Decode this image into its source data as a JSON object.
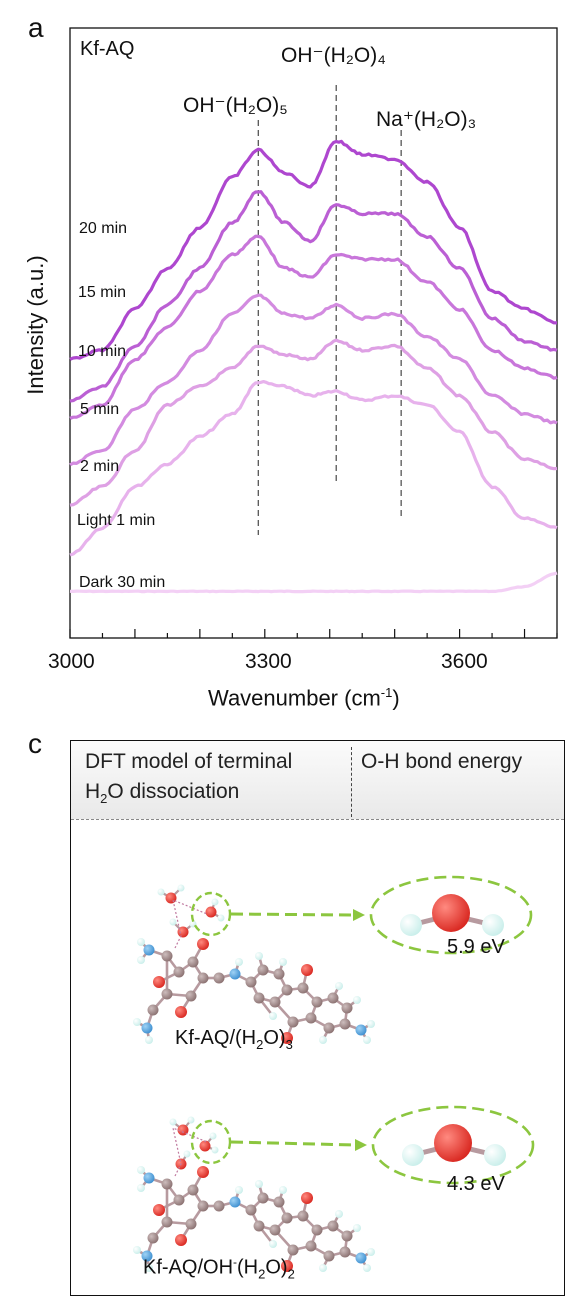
{
  "panel_a": {
    "letter": "a",
    "sample": "Kf-AQ",
    "chart_data": {
      "type": "line",
      "title": "",
      "xlabel": "Wavenumber (cm-1)",
      "ylabel": "Intensity (a.u.)",
      "xlim": [
        3000,
        3750
      ],
      "x_ticks": [
        3000,
        3300,
        3600
      ],
      "y_ticks_shown": false,
      "grid": false,
      "legend": "inline labels left of each trace",
      "x": [
        3000,
        3050,
        3100,
        3150,
        3200,
        3250,
        3290,
        3330,
        3370,
        3410,
        3450,
        3500,
        3550,
        3600,
        3650,
        3700,
        3750
      ],
      "series": [
        {
          "name": "Dark 30 min",
          "color": "#f3d0f5",
          "values": [
            0.3,
            0.3,
            0.3,
            0.3,
            0.3,
            0.3,
            0.3,
            0.3,
            0.3,
            0.3,
            0.3,
            0.3,
            0.3,
            0.3,
            0.3,
            0.4,
            0.7
          ]
        },
        {
          "name": "Light 1 min",
          "color": "#e7b2ec",
          "values": [
            1.1,
            1.7,
            2.6,
            3.1,
            3.7,
            4.2,
            4.9,
            4.8,
            4.6,
            4.7,
            4.5,
            4.6,
            4.4,
            3.8,
            2.6,
            1.9,
            1.7
          ]
        },
        {
          "name": "2 min",
          "color": "#dea0e4",
          "values": [
            2.2,
            2.6,
            3.4,
            4.4,
            4.8,
            5.2,
            5.7,
            5.5,
            5.4,
            5.8,
            5.6,
            5.7,
            5.2,
            4.6,
            3.8,
            3.2,
            3.0
          ]
        },
        {
          "name": "5 min",
          "color": "#d38be0",
          "values": [
            3.1,
            3.4,
            4.3,
            4.9,
            5.6,
            6.4,
            6.8,
            6.4,
            6.3,
            6.6,
            6.3,
            6.4,
            5.9,
            5.4,
            4.6,
            4.2,
            4.0
          ]
        },
        {
          "name": "10 min",
          "color": "#c876da",
          "values": [
            4.1,
            4.4,
            5.4,
            6.1,
            6.9,
            7.7,
            8.1,
            7.4,
            7.2,
            7.7,
            7.6,
            7.6,
            7.1,
            6.5,
            5.6,
            5.2,
            5.0
          ]
        },
        {
          "name": "15 min",
          "color": "#bb5fd4",
          "values": [
            4.5,
            4.8,
            5.7,
            6.6,
            7.4,
            8.4,
            9.1,
            8.4,
            8.0,
            8.8,
            8.6,
            8.6,
            8.1,
            7.4,
            6.3,
            5.8,
            5.6
          ]
        },
        {
          "name": "20 min",
          "color": "#ae47cf",
          "values": [
            5.4,
            5.6,
            6.5,
            7.4,
            8.3,
            9.4,
            10.0,
            9.5,
            9.2,
            10.2,
            9.9,
            9.8,
            9.3,
            8.3,
            6.9,
            6.5,
            6.2
          ]
        }
      ],
      "annotations": [
        {
          "formula": "OH⁻(H₂O)₅",
          "x": 3290
        },
        {
          "formula": "OH⁻(H₂O)₄",
          "x": 3410
        },
        {
          "formula": "Na⁺(H₂O)₃",
          "x": 3510
        }
      ]
    }
  },
  "panel_c": {
    "letter": "c",
    "header_left_line1": "DFT model of terminal",
    "header_left_line2_pre": "H",
    "header_left_line2_sub": "2",
    "header_left_line2_post": "O dissociation",
    "header_right": "O-H bond energy",
    "models": [
      {
        "label_main": "Kf-AQ/(H",
        "label_sub1": "2",
        "label_mid": "O)",
        "label_sub2": "3",
        "energy": "5.9 eV"
      },
      {
        "label_main": "Kf-AQ/OH",
        "label_sup": "-",
        "label_mid": "(H",
        "label_sub1": "2",
        "label_tail": "O)",
        "label_sub2": "2",
        "energy": "4.3 eV"
      }
    ],
    "colors": {
      "oxygen": "#d8261f",
      "carbon": "#8a7070",
      "nitrogen": "#3d8fd0",
      "hydrogen": "#c8eeea",
      "bond": "#b79a9f",
      "highlight": "#8cc63f"
    }
  }
}
